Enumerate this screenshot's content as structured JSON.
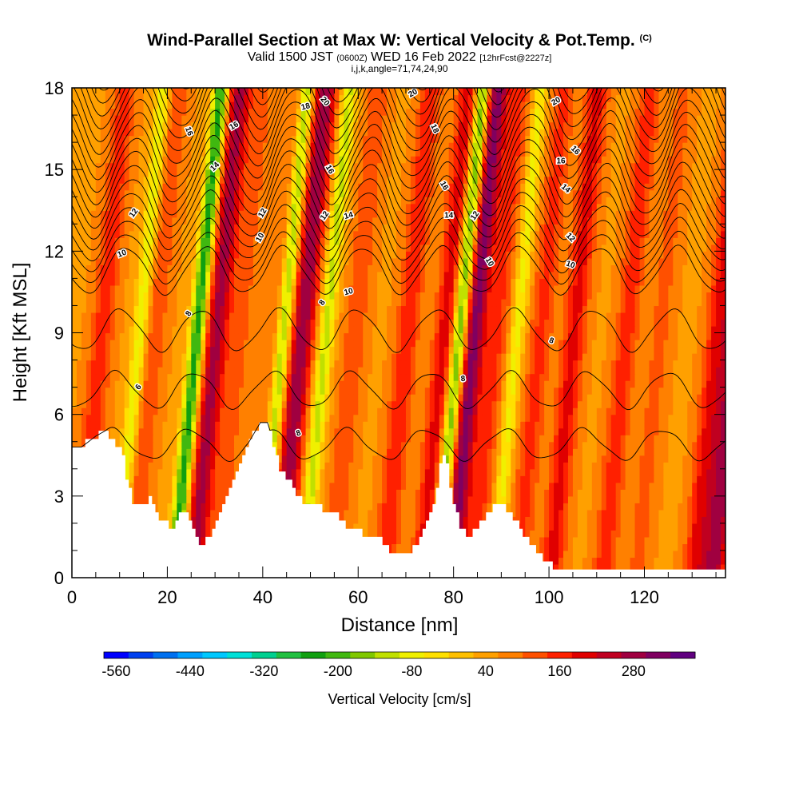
{
  "title": "Wind-Parallel Section at Max W: Vertical Velocity & Pot.Temp.",
  "title_mark": "(C)",
  "subtitle_main": "Valid 1500 JST",
  "subtitle_zulu": "(0600Z)",
  "subtitle_date": "WED 16 Feb 2022",
  "subtitle_fcst": "[12hrFcst@2227z]",
  "subtitle_indices": "i,j,k,angle=71,74,24,90",
  "chart_data": {
    "type": "heatmap",
    "xlabel": "Distance [nm]",
    "ylabel": "Height [Kft MSL]",
    "xlim": [
      0,
      137
    ],
    "ylim": [
      0,
      18
    ],
    "x_ticks": [
      0,
      20,
      40,
      60,
      80,
      100,
      120
    ],
    "y_ticks": [
      0,
      3,
      6,
      9,
      12,
      15,
      18
    ],
    "colorbar": {
      "label": "Vertical Velocity [cm/s]",
      "tick_labels": [
        "-560",
        "-440",
        "-320",
        "-200",
        "-80",
        "40",
        "160",
        "280"
      ],
      "min": -580,
      "step": 40,
      "colors": [
        "#0000ff",
        "#0040f0",
        "#0070f0",
        "#00a0ff",
        "#00c8ff",
        "#00e0d8",
        "#00d090",
        "#20c040",
        "#10a010",
        "#40b810",
        "#80c800",
        "#c0e000",
        "#f0f000",
        "#ffe000",
        "#ffc000",
        "#ffa000",
        "#ff8000",
        "#ff5000",
        "#ff2000",
        "#e00000",
        "#c00020",
        "#a00040",
        "#800060",
        "#600080"
      ]
    },
    "terrain_kft": [
      [
        0,
        4.8
      ],
      [
        2,
        4.8
      ],
      [
        5,
        5.2
      ],
      [
        7,
        5.4
      ],
      [
        9,
        5.0
      ],
      [
        10.5,
        4.8
      ],
      [
        11,
        4.2
      ],
      [
        11.5,
        3.6
      ],
      [
        12.5,
        3.0
      ],
      [
        13.5,
        2.6
      ],
      [
        15,
        2.6
      ],
      [
        16.5,
        2.9
      ],
      [
        17.5,
        2.6
      ],
      [
        18.5,
        2.2
      ],
      [
        19.5,
        2.0
      ],
      [
        20.5,
        1.9
      ],
      [
        21.5,
        1.8
      ],
      [
        22.5,
        2.2
      ],
      [
        23.5,
        2.5
      ],
      [
        24.5,
        2.4
      ],
      [
        25.5,
        1.8
      ],
      [
        26.5,
        1.3
      ],
      [
        28,
        1.3
      ],
      [
        29.5,
        1.6
      ],
      [
        31,
        2.2
      ],
      [
        32.5,
        2.9
      ],
      [
        34,
        3.6
      ],
      [
        36,
        4.4
      ],
      [
        37.5,
        5.1
      ],
      [
        39.5,
        5.7
      ],
      [
        41,
        5.7
      ],
      [
        42,
        5.1
      ],
      [
        43,
        4.4
      ],
      [
        44,
        3.9
      ],
      [
        45.5,
        3.6
      ],
      [
        46.5,
        3.3
      ],
      [
        48,
        2.9
      ],
      [
        49,
        2.7
      ],
      [
        51,
        2.6
      ],
      [
        54,
        2.5
      ],
      [
        56,
        2.3
      ],
      [
        57.5,
        2.0
      ],
      [
        59,
        1.7
      ],
      [
        60.5,
        1.7
      ],
      [
        62,
        1.6
      ],
      [
        64,
        1.6
      ],
      [
        65.5,
        1.2
      ],
      [
        67,
        0.9
      ],
      [
        69,
        0.9
      ],
      [
        71,
        1.0
      ],
      [
        72,
        1.2
      ],
      [
        73.5,
        1.6
      ],
      [
        75,
        2.2
      ],
      [
        76.5,
        3.1
      ],
      [
        77.5,
        4.4
      ],
      [
        78.5,
        4.4
      ],
      [
        79.5,
        3.4
      ],
      [
        80.5,
        2.5
      ],
      [
        81.5,
        1.9
      ],
      [
        82.5,
        1.6
      ],
      [
        84,
        1.6
      ],
      [
        85.5,
        1.9
      ],
      [
        87,
        2.3
      ],
      [
        88.5,
        2.6
      ],
      [
        91,
        2.6
      ],
      [
        92.5,
        2.3
      ],
      [
        93.5,
        2.0
      ],
      [
        95,
        1.6
      ],
      [
        96.5,
        1.3
      ],
      [
        98,
        0.9
      ],
      [
        100,
        0.6
      ],
      [
        102,
        0.3
      ],
      [
        104,
        0.3
      ],
      [
        107,
        0.3
      ],
      [
        137,
        0.3
      ]
    ],
    "updrafts": [
      [
        3,
        110
      ],
      [
        14,
        80
      ],
      [
        27,
        220
      ],
      [
        32,
        60
      ],
      [
        40,
        90
      ],
      [
        45,
        240
      ],
      [
        56,
        80
      ],
      [
        67,
        120
      ],
      [
        75,
        150
      ],
      [
        81,
        270
      ],
      [
        86,
        90
      ],
      [
        95,
        100
      ],
      [
        102,
        140
      ],
      [
        113,
        110
      ],
      [
        120,
        60
      ],
      [
        132,
        140
      ],
      [
        136,
        230
      ]
    ],
    "downdrafts": [
      [
        11,
        -150
      ],
      [
        23,
        -300
      ],
      [
        41,
        -260
      ],
      [
        50,
        -170
      ],
      [
        78,
        -290
      ],
      [
        90,
        -130
      ]
    ],
    "isentropes": [
      4,
      6,
      8,
      10,
      11,
      12,
      13,
      14,
      15,
      16,
      17,
      18,
      19,
      20,
      21,
      22,
      23,
      24,
      25,
      26,
      27,
      28
    ],
    "isentrope_labels": [
      {
        "text": "6",
        "x": 14,
        "y": 7.0,
        "rot": -55
      },
      {
        "text": "8",
        "x": 24.5,
        "y": 9.7,
        "rot": -55
      },
      {
        "text": "8",
        "x": 47.5,
        "y": 5.3,
        "rot": -20
      },
      {
        "text": "8",
        "x": 52.5,
        "y": 10.1,
        "rot": -55
      },
      {
        "text": "8",
        "x": 82,
        "y": 7.3,
        "rot": -5
      },
      {
        "text": "8",
        "x": 100.5,
        "y": 8.7,
        "rot": 20
      },
      {
        "text": "10",
        "x": 10.5,
        "y": 11.9,
        "rot": -20
      },
      {
        "text": "10",
        "x": 39.5,
        "y": 12.5,
        "rot": -60
      },
      {
        "text": "10",
        "x": 58,
        "y": 10.5,
        "rot": -15
      },
      {
        "text": "10",
        "x": 87.5,
        "y": 11.6,
        "rot": 60
      },
      {
        "text": "10",
        "x": 104.5,
        "y": 11.5,
        "rot": 20
      },
      {
        "text": "12",
        "x": 13,
        "y": 13.4,
        "rot": -55
      },
      {
        "text": "12",
        "x": 40,
        "y": 13.4,
        "rot": -60
      },
      {
        "text": "12",
        "x": 53,
        "y": 13.3,
        "rot": -55
      },
      {
        "text": "12",
        "x": 84.5,
        "y": 13.3,
        "rot": -55
      },
      {
        "text": "12",
        "x": 104.5,
        "y": 12.5,
        "rot": 45
      },
      {
        "text": "14",
        "x": 30,
        "y": 15.1,
        "rot": -45
      },
      {
        "text": "14",
        "x": 58,
        "y": 13.3,
        "rot": -15
      },
      {
        "text": "14",
        "x": 79,
        "y": 13.3,
        "rot": 0
      },
      {
        "text": "14",
        "x": 103.5,
        "y": 14.3,
        "rot": 40
      },
      {
        "text": "16",
        "x": 24.5,
        "y": 16.4,
        "rot": 70
      },
      {
        "text": "16",
        "x": 34,
        "y": 16.6,
        "rot": -30
      },
      {
        "text": "16",
        "x": 54,
        "y": 15.0,
        "rot": 60
      },
      {
        "text": "16",
        "x": 78,
        "y": 14.4,
        "rot": 60
      },
      {
        "text": "16",
        "x": 102.5,
        "y": 15.3,
        "rot": 0
      },
      {
        "text": "16",
        "x": 105.5,
        "y": 15.7,
        "rot": 45
      },
      {
        "text": "18",
        "x": 49,
        "y": 17.3,
        "rot": -15
      },
      {
        "text": "18",
        "x": 76,
        "y": 16.5,
        "rot": 65
      },
      {
        "text": "20",
        "x": 53,
        "y": 17.5,
        "rot": 50
      },
      {
        "text": "20",
        "x": 71.5,
        "y": 17.8,
        "rot": -30
      },
      {
        "text": "20",
        "x": 101.5,
        "y": 17.5,
        "rot": -30
      }
    ]
  }
}
